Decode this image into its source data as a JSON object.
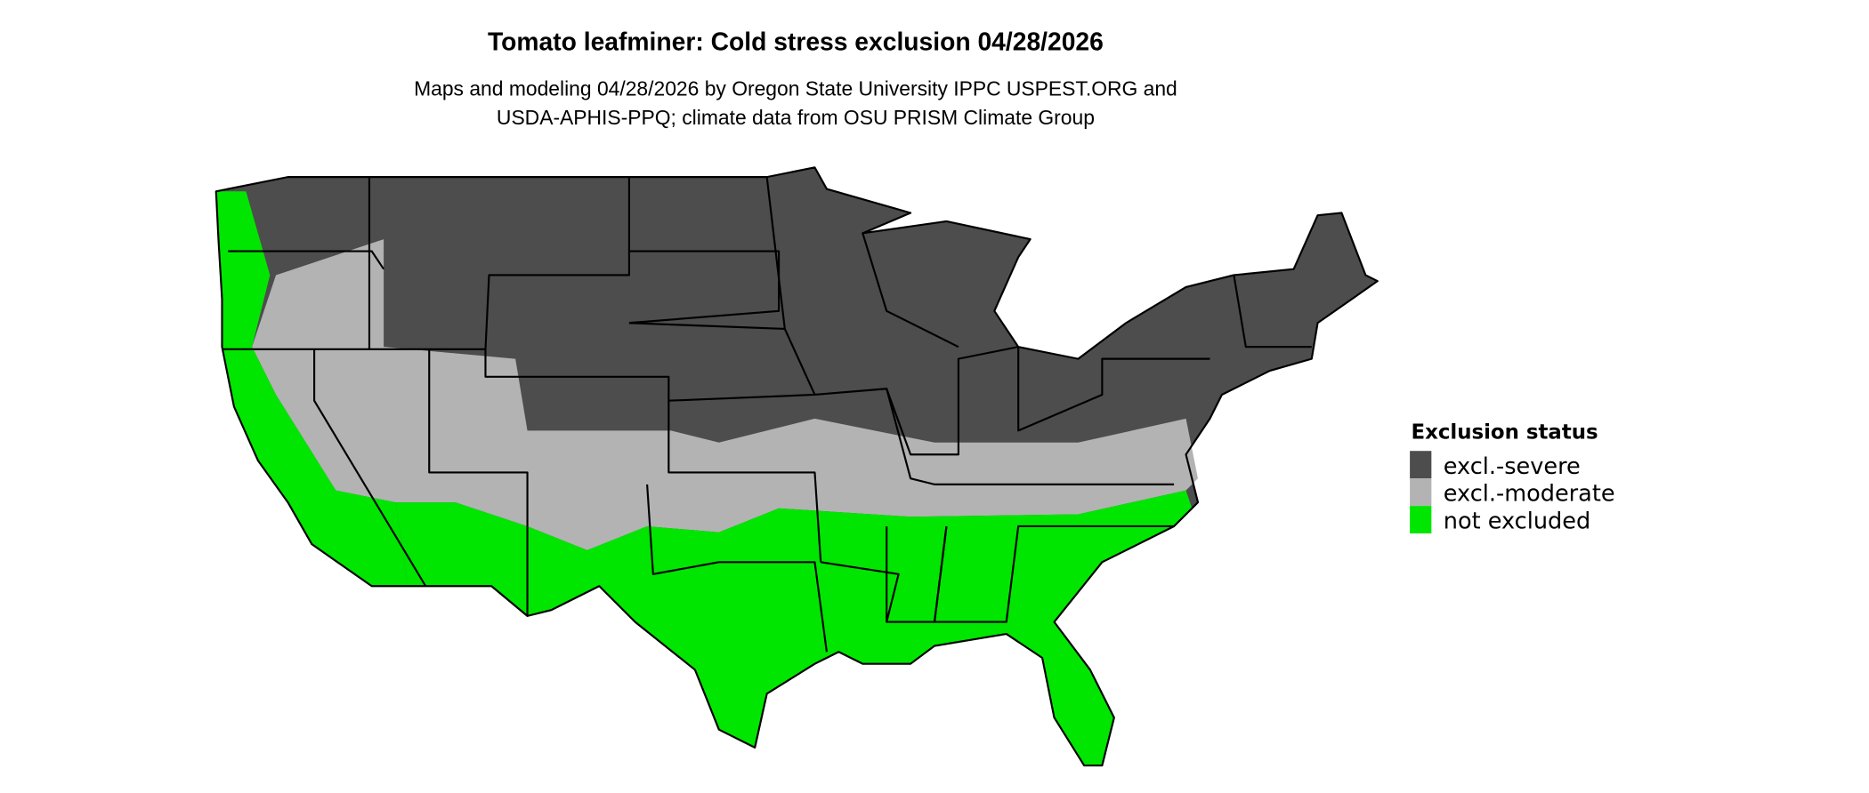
{
  "title": "Tomato leafminer: Cold stress exclusion 04/28/2026",
  "subtitle_lines": [
    "Maps and modeling 04/28/2026 by Oregon State University IPPC USPEST.ORG and",
    "USDA-APHIS-PPQ; climate data from OSU PRISM Climate Group"
  ],
  "legend": {
    "title": "Exclusion status",
    "items": [
      {
        "label": "excl.-severe",
        "color": "#4d4d4d"
      },
      {
        "label": "excl.-moderate",
        "color": "#b3b3b3"
      },
      {
        "label": "not excluded",
        "color": "#00e600"
      }
    ]
  }
}
